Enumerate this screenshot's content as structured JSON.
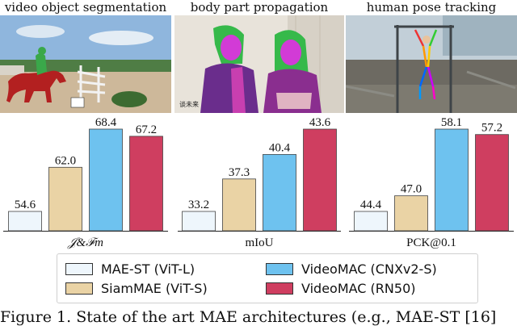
{
  "panels": [
    {
      "title": "video object segmentation",
      "caption": "𝒥&ℱm"
    },
    {
      "title": "body part propagation",
      "caption": "mIoU"
    },
    {
      "title": "human pose tracking",
      "caption": "PCK@0.1"
    }
  ],
  "photo_text": {
    "subtitle": "谈未来"
  },
  "chart_data": [
    {
      "type": "bar",
      "xlabel": "𝒥&ℱm",
      "categories": [
        "MAE-ST (ViT-L)",
        "SiamMAE (ViT-S)",
        "VideoMAC (CNXv2-S)",
        "VideoMAC (RN50)"
      ],
      "values": [
        54.6,
        62.0,
        68.4,
        67.2
      ]
    },
    {
      "type": "bar",
      "xlabel": "mIoU",
      "categories": [
        "MAE-ST (ViT-L)",
        "SiamMAE (ViT-S)",
        "VideoMAC (CNXv2-S)",
        "VideoMAC (RN50)"
      ],
      "values": [
        33.2,
        37.3,
        40.4,
        43.6
      ]
    },
    {
      "type": "bar",
      "xlabel": "PCK@0.1",
      "categories": [
        "MAE-ST (ViT-L)",
        "SiamMAE (ViT-S)",
        "VideoMAC (CNXv2-S)",
        "VideoMAC (RN50)"
      ],
      "values": [
        44.4,
        47.0,
        58.1,
        57.2
      ]
    }
  ],
  "legend": [
    {
      "label": "MAE-ST (ViT-L)",
      "color": "#eef6fc"
    },
    {
      "label": "SiamMAE (ViT-S)",
      "color": "#ead3a5"
    },
    {
      "label": "VideoMAC (CNXv2-S)",
      "color": "#6ec2ef"
    },
    {
      "label": "VideoMAC (RN50)",
      "color": "#cf3e60"
    }
  ],
  "caption": "Figure 1. State of the art MAE architectures (e.g., MAE-ST [16]"
}
